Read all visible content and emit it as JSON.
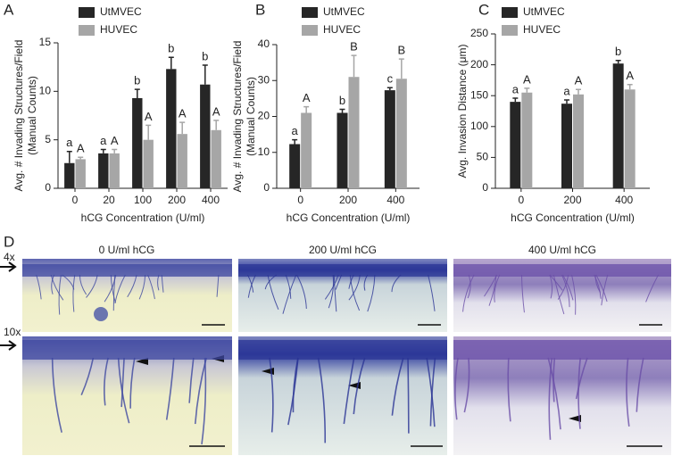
{
  "chart_data": [
    {
      "type": "bar",
      "panel": "A",
      "ylabel": [
        "Avg. # Invading Structures/Field",
        "(Manual Counts)"
      ],
      "xlabel": "hCG Concentration (U/ml)",
      "categories": [
        "0",
        "20",
        "100",
        "200",
        "400"
      ],
      "ylim": [
        0,
        15
      ],
      "yticks": [
        0,
        5,
        10,
        15
      ],
      "series": [
        {
          "name": "UtMVEC",
          "color": "#262626",
          "values": [
            2.6,
            3.6,
            9.3,
            12.3,
            10.7
          ],
          "errors": [
            1.2,
            0.4,
            0.9,
            1.2,
            2.0
          ],
          "letters": [
            "a",
            "a",
            "b",
            "b",
            "b"
          ]
        },
        {
          "name": "HUVEC",
          "color": "#a6a6a6",
          "values": [
            3.0,
            3.6,
            5.0,
            5.6,
            6.0
          ],
          "errors": [
            0.2,
            0.4,
            1.5,
            1.2,
            1.0
          ],
          "letters": [
            "A",
            "A",
            "A",
            "A",
            "A"
          ]
        }
      ]
    },
    {
      "type": "bar",
      "panel": "B",
      "ylabel": [
        "Avg. # Invading Structures/Field",
        "(Manual Counts)"
      ],
      "xlabel": "hCG Concentration (U/ml)",
      "categories": [
        "0",
        "200",
        "400"
      ],
      "ylim": [
        0,
        40
      ],
      "yticks": [
        0,
        10,
        20,
        30,
        40
      ],
      "series": [
        {
          "name": "UtMVEC",
          "color": "#262626",
          "values": [
            12.3,
            21,
            27.3
          ],
          "errors": [
            1.2,
            1.0,
            0.7
          ],
          "letters": [
            "a",
            "b",
            "c"
          ]
        },
        {
          "name": "HUVEC",
          "color": "#a6a6a6",
          "values": [
            21,
            31,
            30.5
          ],
          "errors": [
            1.7,
            6.0,
            5.5
          ],
          "letters": [
            "A",
            "B",
            "B"
          ]
        }
      ]
    },
    {
      "type": "bar",
      "panel": "C",
      "ylabel": [
        "Avg. Invasion Distance (μm)"
      ],
      "xlabel": "hCG Concentration (U/ml)",
      "categories": [
        "0",
        "200",
        "400"
      ],
      "ylim": [
        0,
        250
      ],
      "yticks": [
        0,
        50,
        100,
        150,
        200,
        250
      ],
      "series": [
        {
          "name": "UtMVEC",
          "color": "#262626",
          "values": [
            140,
            137,
            202
          ],
          "errors": [
            6,
            6,
            5
          ],
          "letters": [
            "a",
            "a",
            "b"
          ]
        },
        {
          "name": "HUVEC",
          "color": "#a6a6a6",
          "values": [
            155,
            152,
            160
          ],
          "errors": [
            7,
            8,
            8
          ],
          "letters": [
            "A",
            "A",
            "A"
          ]
        }
      ]
    }
  ],
  "panel_d": {
    "label": "D",
    "columns": [
      "0 U/ml hCG",
      "200 U/ml hCG",
      "400 U/ml hCG"
    ],
    "rows": [
      "4x",
      "10x"
    ]
  }
}
